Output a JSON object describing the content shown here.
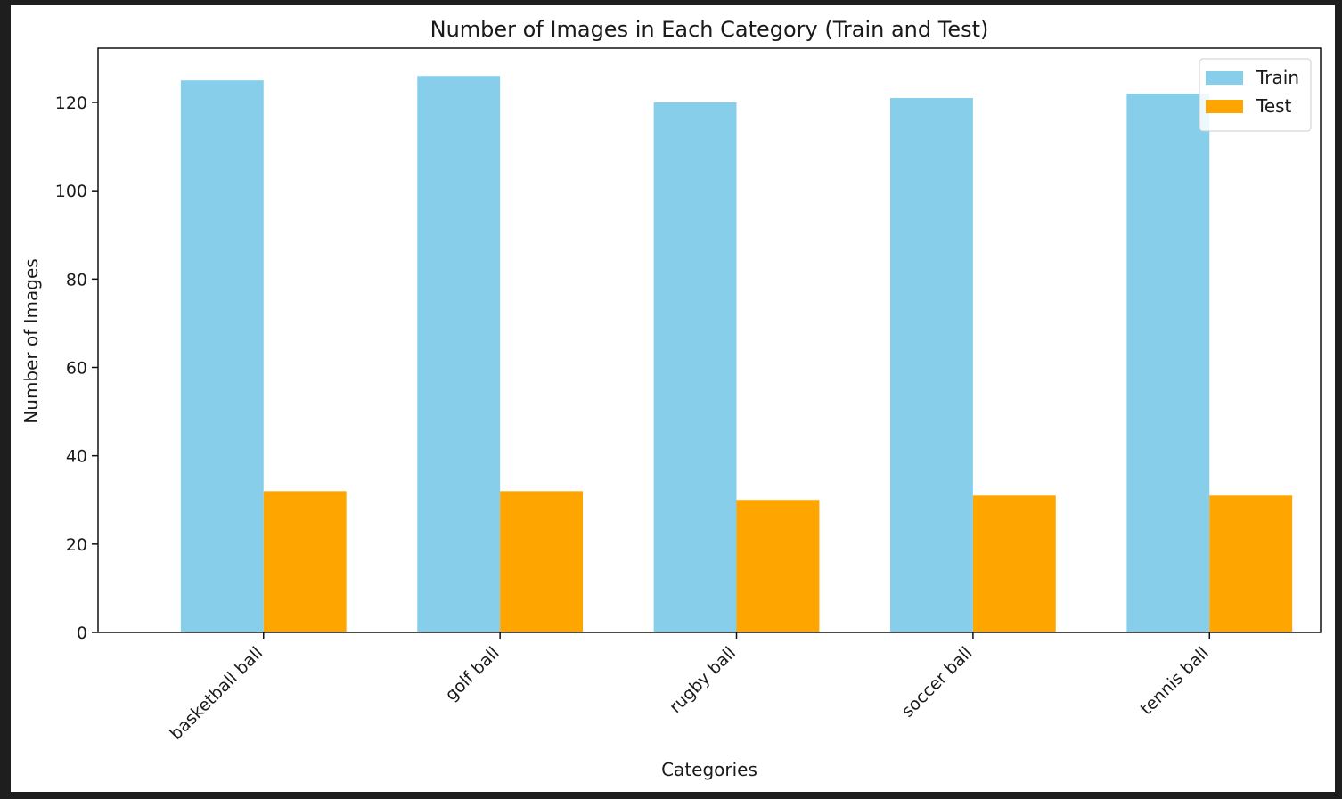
{
  "chart_data": {
    "type": "bar",
    "title": "Number of Images in Each Category (Train and Test)",
    "xlabel": "Categories",
    "ylabel": "Number of Images",
    "categories": [
      "basketball ball",
      "golf ball",
      "rugby ball",
      "soccer ball",
      "tennis ball"
    ],
    "series": [
      {
        "name": "Train",
        "color": "#87ceeb",
        "values": [
          125,
          126,
          120,
          121,
          122
        ]
      },
      {
        "name": "Test",
        "color": "#ffa500",
        "values": [
          32,
          32,
          30,
          31,
          31
        ]
      }
    ],
    "ylim": [
      0,
      132.3
    ],
    "yticks": [
      0,
      20,
      40,
      60,
      80,
      100,
      120
    ],
    "legend_position": "top-right",
    "grid": false
  }
}
